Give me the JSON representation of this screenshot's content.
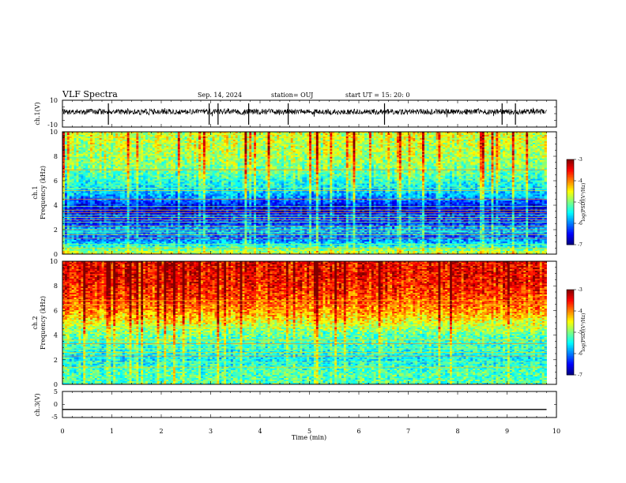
{
  "header": {
    "title": "VLF Spectra",
    "date": "Sep. 14, 2024",
    "station": "station= OUJ",
    "start": "start  UT  =   15: 20: 0"
  },
  "chart_data": [
    {
      "type": "line",
      "ylabel": "ch.1(V)",
      "ylim": [
        -10,
        10
      ],
      "y_ticks": [
        "10",
        "-10"
      ],
      "xlim": [
        0,
        10
      ],
      "series": [
        {
          "x": [
            0,
            9.8
          ],
          "y": [
            0,
            0
          ]
        }
      ],
      "spikes_min": [
        0.93,
        2.97,
        3.15,
        3.77,
        4.57,
        6.52,
        8.9,
        9.17
      ]
    },
    {
      "type": "heatmap",
      "ylabel": "ch.1\nFrequency (kHz)",
      "ylim": [
        0,
        10
      ],
      "y_ticks": [
        "0",
        "2",
        "4",
        "6",
        "8",
        "10"
      ],
      "xlim": [
        0,
        10
      ],
      "data_xmax": 9.8,
      "colorbar": {
        "label": "log(PSD)(V²/Hz)",
        "range": [
          -7,
          -3
        ],
        "ticks": [
          "-3",
          "-4",
          "-5",
          "-6",
          "-7"
        ]
      },
      "profile": [
        {
          "f": 0.0,
          "v": -4.6
        },
        {
          "f": 0.5,
          "v": -5.2
        },
        {
          "f": 1.0,
          "v": -5.8
        },
        {
          "f": 1.5,
          "v": -6.1
        },
        {
          "f": 2.0,
          "v": -5.7
        },
        {
          "f": 2.5,
          "v": -6.3
        },
        {
          "f": 3.0,
          "v": -6.2
        },
        {
          "f": 3.5,
          "v": -6.6
        },
        {
          "f": 4.0,
          "v": -6.4
        },
        {
          "f": 4.5,
          "v": -6.0
        },
        {
          "f": 5.0,
          "v": -5.7
        },
        {
          "f": 6.0,
          "v": -5.3
        },
        {
          "f": 7.0,
          "v": -5.0
        },
        {
          "f": 8.0,
          "v": -4.8
        },
        {
          "f": 9.0,
          "v": -4.7
        },
        {
          "f": 10.0,
          "v": -4.6
        }
      ],
      "lines_khz": [
        0.5,
        0.8,
        1.3,
        1.6,
        1.8,
        2.0,
        2.3,
        2.6,
        2.8,
        3.0,
        3.2,
        3.4,
        3.6,
        3.9,
        4.5,
        5.2,
        5.4,
        6.9
      ]
    },
    {
      "type": "heatmap",
      "ylabel": "ch.2\nFrequency (kHz)",
      "ylim": [
        0,
        10
      ],
      "y_ticks": [
        "0",
        "2",
        "4",
        "6",
        "8",
        "10"
      ],
      "xlim": [
        0,
        10
      ],
      "data_xmax": 9.8,
      "colorbar": {
        "label": "log(PSD)(V²/Hz)",
        "range": [
          -7,
          -3
        ],
        "ticks": [
          "-3",
          "-4",
          "-5",
          "-6",
          "-7"
        ]
      },
      "profile": [
        {
          "f": 0.0,
          "v": -5.2
        },
        {
          "f": 1.0,
          "v": -5.2
        },
        {
          "f": 2.0,
          "v": -5.5
        },
        {
          "f": 3.0,
          "v": -5.3
        },
        {
          "f": 4.0,
          "v": -5.1
        },
        {
          "f": 5.0,
          "v": -4.6
        },
        {
          "f": 6.0,
          "v": -4.1
        },
        {
          "f": 7.0,
          "v": -3.8
        },
        {
          "f": 8.0,
          "v": -3.6
        },
        {
          "f": 9.0,
          "v": -3.5
        },
        {
          "f": 10.0,
          "v": -3.5
        }
      ],
      "lines_khz": [
        1.4,
        1.8,
        2.3,
        2.6,
        2.9,
        3.3,
        3.6,
        4.7,
        6.5,
        6.8
      ]
    },
    {
      "type": "line",
      "ylabel": "ch.3(V)",
      "ylim": [
        -5,
        5
      ],
      "y_ticks": [
        "5",
        "0",
        "-5"
      ],
      "xlim": [
        0,
        10
      ],
      "xlabel": "Time (min)",
      "x_ticks": [
        "0",
        "1",
        "2",
        "3",
        "4",
        "5",
        "6",
        "7",
        "8",
        "9",
        "10"
      ],
      "series": [
        {
          "x": [
            0,
            9.8
          ],
          "y": [
            -1.9,
            -1.9
          ]
        }
      ]
    }
  ]
}
